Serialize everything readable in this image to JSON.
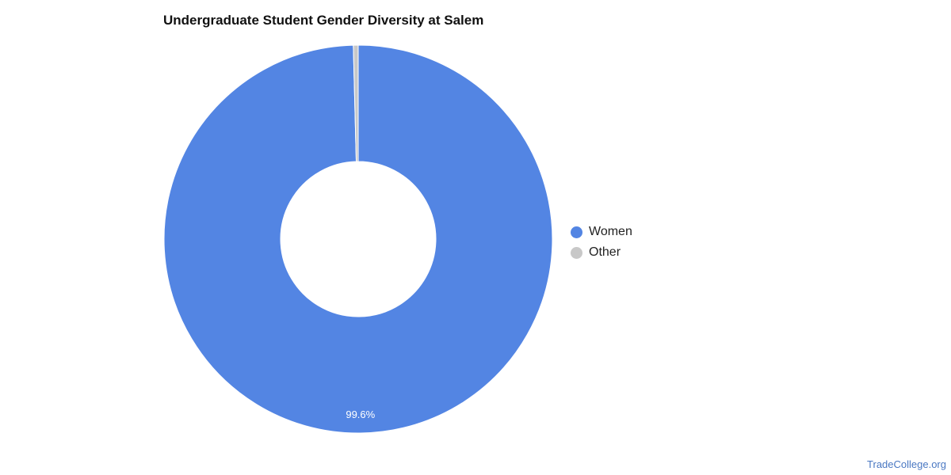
{
  "chart_data": {
    "type": "pie",
    "title": "Undergraduate Student Gender Diversity at Salem",
    "categories": [
      "Women",
      "Other"
    ],
    "values": [
      99.6,
      0.4
    ],
    "colors": [
      "#5385e3",
      "#c8c8c8"
    ],
    "data_labels": [
      "99.6%",
      ""
    ],
    "donut": true,
    "legend_position": "right"
  },
  "watermark": "TradeCollege.org"
}
